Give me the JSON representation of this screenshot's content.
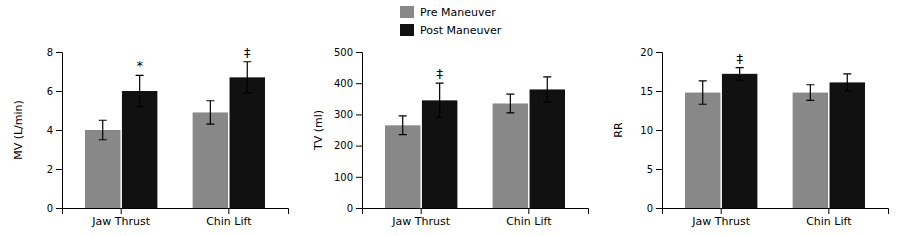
{
  "chart_data": [
    {
      "type": "bar",
      "ylabel": "MV (L/min)",
      "categories": [
        "Jaw Thrust",
        "Chin Lift"
      ],
      "series": [
        {
          "name": "Pre Maneuver",
          "color": "#888888",
          "values": [
            4.0,
            4.9
          ],
          "errors": [
            0.5,
            0.6
          ]
        },
        {
          "name": "Post Maneuver",
          "color": "#111111",
          "values": [
            6.0,
            6.7
          ],
          "errors": [
            0.8,
            0.8
          ],
          "annotations": [
            "*",
            "‡"
          ]
        }
      ],
      "ylim": [
        0,
        8
      ],
      "yticks": [
        0,
        2,
        4,
        6,
        8
      ],
      "grid": false,
      "legend": "top"
    },
    {
      "type": "bar",
      "ylabel": "TV (ml)",
      "categories": [
        "Jaw Thrust",
        "Chin Lift"
      ],
      "series": [
        {
          "name": "Pre Maneuver",
          "color": "#888888",
          "values": [
            265,
            335
          ],
          "errors": [
            30,
            30
          ]
        },
        {
          "name": "Post Maneuver",
          "color": "#111111",
          "values": [
            345,
            380
          ],
          "errors": [
            55,
            40
          ],
          "annotations": [
            "‡",
            null
          ]
        }
      ],
      "ylim": [
        0,
        500
      ],
      "yticks": [
        0,
        100,
        200,
        300,
        400,
        500
      ],
      "grid": false
    },
    {
      "type": "bar",
      "ylabel": "RR",
      "categories": [
        "Jaw Thrust",
        "Chin Lift"
      ],
      "series": [
        {
          "name": "Pre Maneuver",
          "color": "#888888",
          "values": [
            14.8,
            14.8
          ],
          "errors": [
            1.5,
            1.0
          ]
        },
        {
          "name": "Post Maneuver",
          "color": "#111111",
          "values": [
            17.2,
            16.1
          ],
          "errors": [
            0.8,
            1.1
          ],
          "annotations": [
            "‡",
            null
          ]
        }
      ],
      "ylim": [
        0,
        20
      ],
      "yticks": [
        0,
        5,
        10,
        15,
        20
      ],
      "grid": false
    }
  ]
}
